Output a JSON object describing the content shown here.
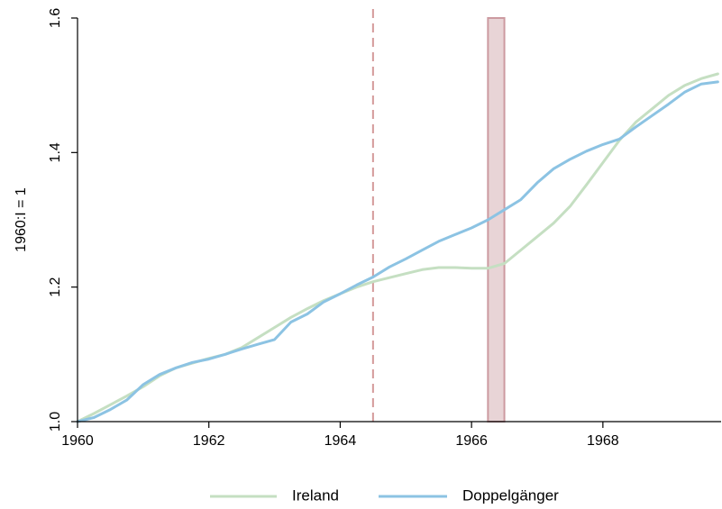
{
  "chart_data": {
    "type": "line",
    "title": "",
    "xlabel": "",
    "ylabel": "1960:I = 1",
    "xlim": [
      1960,
      1969.8
    ],
    "ylim": [
      1.0,
      1.6
    ],
    "x_ticks": [
      1960,
      1962,
      1964,
      1966,
      1968
    ],
    "x_tick_labels": [
      "1960",
      "1962",
      "1964",
      "1966",
      "1968"
    ],
    "y_ticks": [
      1.0,
      1.2,
      1.4,
      1.6
    ],
    "y_tick_labels": [
      "1.0",
      "1.2",
      "1.4",
      "1.6"
    ],
    "grid": false,
    "legend_position": "bottom",
    "vline": {
      "x": 1964.5,
      "style": "dashed",
      "color": "#d49a9a"
    },
    "shaded_region": {
      "x_start": 1966.25,
      "x_end": 1966.5,
      "y_start": 1.0,
      "y_end": 1.6,
      "fill": "#e8d4d6",
      "stroke": "#cc9aa0"
    },
    "series": [
      {
        "name": "Ireland",
        "color": "#c5dfc2",
        "x": [
          1960,
          1960.25,
          1960.5,
          1960.75,
          1961,
          1961.25,
          1961.5,
          1961.75,
          1962,
          1962.25,
          1962.5,
          1962.75,
          1963,
          1963.25,
          1963.5,
          1963.75,
          1964,
          1964.25,
          1964.5,
          1964.75,
          1965,
          1965.25,
          1965.5,
          1965.75,
          1966,
          1966.25,
          1966.5,
          1966.75,
          1967,
          1967.25,
          1967.5,
          1967.75,
          1968,
          1968.25,
          1968.5,
          1968.75,
          1969,
          1969.25,
          1969.5,
          1969.75
        ],
        "values": [
          1.0,
          1.012,
          1.025,
          1.038,
          1.052,
          1.068,
          1.08,
          1.087,
          1.094,
          1.1,
          1.11,
          1.125,
          1.14,
          1.155,
          1.168,
          1.18,
          1.19,
          1.2,
          1.208,
          1.214,
          1.22,
          1.226,
          1.229,
          1.229,
          1.228,
          1.228,
          1.235,
          1.255,
          1.275,
          1.295,
          1.32,
          1.352,
          1.385,
          1.418,
          1.445,
          1.465,
          1.485,
          1.5,
          1.51,
          1.517
        ]
      },
      {
        "name": "Doppelgänger",
        "color": "#8cc3e3",
        "x": [
          1960,
          1960.25,
          1960.5,
          1960.75,
          1961,
          1961.25,
          1961.5,
          1961.75,
          1962,
          1962.25,
          1962.5,
          1962.75,
          1963,
          1963.25,
          1963.5,
          1963.75,
          1964,
          1964.25,
          1964.5,
          1964.75,
          1965,
          1965.25,
          1965.5,
          1965.75,
          1966,
          1966.25,
          1966.5,
          1966.75,
          1967,
          1967.25,
          1967.5,
          1967.75,
          1968,
          1968.25,
          1968.5,
          1968.75,
          1969,
          1969.25,
          1969.5,
          1969.75
        ],
        "values": [
          1.0,
          1.006,
          1.018,
          1.032,
          1.055,
          1.07,
          1.08,
          1.088,
          1.093,
          1.1,
          1.108,
          1.115,
          1.122,
          1.148,
          1.16,
          1.178,
          1.19,
          1.203,
          1.215,
          1.23,
          1.242,
          1.255,
          1.268,
          1.278,
          1.288,
          1.3,
          1.315,
          1.33,
          1.355,
          1.376,
          1.39,
          1.402,
          1.412,
          1.42,
          1.438,
          1.455,
          1.472,
          1.49,
          1.502,
          1.505
        ]
      }
    ]
  }
}
